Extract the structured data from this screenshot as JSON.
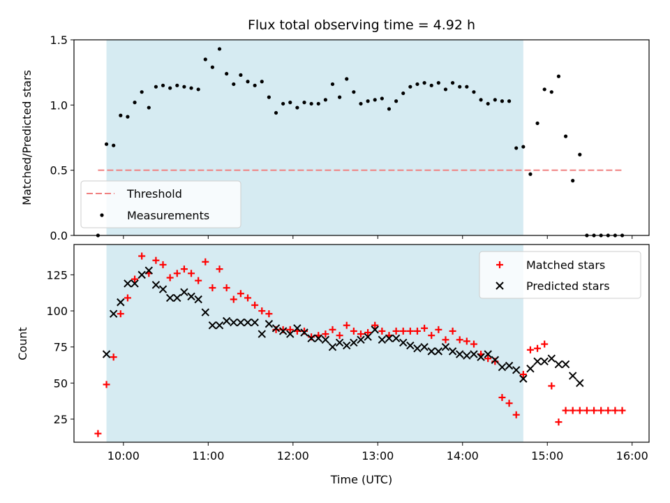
{
  "chart_data": [
    {
      "type": "scatter",
      "title": "Flux total observing time = 4.92 h",
      "xlabel": "",
      "ylabel": "Matched/Predicted stars",
      "xlim": [
        "09:25",
        "16:12"
      ],
      "ylim": [
        0,
        1.5
      ],
      "yticks": [
        0.0,
        0.5,
        1.0,
        1.5
      ],
      "ytick_labels": [
        "0.0",
        "0.5",
        "1.0",
        "1.5"
      ],
      "xticks": [
        "10:00",
        "11:00",
        "12:00",
        "13:00",
        "14:00",
        "15:00",
        "16:00"
      ],
      "observing_window": [
        "09:48",
        "14:43"
      ],
      "legend_location": "lower left",
      "threshold": {
        "name": "Threshold",
        "value": 0.5,
        "x_range": [
          "09:42",
          "15:53"
        ],
        "color": "#f08080"
      },
      "series": [
        {
          "name": "Measurements",
          "color": "#000000",
          "x": [
            "09:42",
            "09:48",
            "09:53",
            "09:58",
            "10:03",
            "10:08",
            "10:13",
            "10:18",
            "10:23",
            "10:28",
            "10:33",
            "10:38",
            "10:43",
            "10:48",
            "10:53",
            "10:58",
            "11:03",
            "11:08",
            "11:13",
            "11:18",
            "11:23",
            "11:28",
            "11:33",
            "11:38",
            "11:43",
            "11:48",
            "11:53",
            "11:58",
            "12:03",
            "12:08",
            "12:13",
            "12:18",
            "12:23",
            "12:28",
            "12:33",
            "12:38",
            "12:43",
            "12:48",
            "12:53",
            "12:58",
            "13:03",
            "13:08",
            "13:13",
            "13:18",
            "13:23",
            "13:28",
            "13:33",
            "13:38",
            "13:43",
            "13:48",
            "13:53",
            "13:58",
            "14:03",
            "14:08",
            "14:13",
            "14:18",
            "14:23",
            "14:28",
            "14:33",
            "14:38",
            "14:43",
            "14:48",
            "14:53",
            "14:58",
            "15:03",
            "15:08",
            "15:13",
            "15:18",
            "15:23",
            "15:28",
            "15:33",
            "15:38",
            "15:43",
            "15:48",
            "15:53"
          ],
          "y": [
            0.0,
            0.7,
            0.69,
            0.92,
            0.91,
            1.02,
            1.1,
            0.98,
            1.14,
            1.15,
            1.13,
            1.15,
            1.14,
            1.13,
            1.12,
            1.35,
            1.29,
            1.43,
            1.24,
            1.16,
            1.23,
            1.18,
            1.15,
            1.18,
            1.06,
            0.94,
            1.01,
            1.02,
            0.98,
            1.02,
            1.01,
            1.01,
            1.04,
            1.16,
            1.06,
            1.2,
            1.1,
            1.01,
            1.03,
            1.04,
            1.05,
            0.97,
            1.03,
            1.09,
            1.14,
            1.16,
            1.17,
            1.15,
            1.17,
            1.12,
            1.17,
            1.14,
            1.14,
            1.1,
            1.04,
            1.01,
            1.04,
            1.03,
            1.03,
            0.67,
            0.68,
            0.47,
            0.86,
            1.12,
            1.1,
            1.22,
            0.76,
            0.42,
            0.62,
            0.0,
            0.0,
            0.0,
            0.0,
            0.0,
            0.0
          ]
        }
      ]
    },
    {
      "type": "scatter",
      "title": "",
      "xlabel": "Time (UTC)",
      "ylabel": "Count",
      "xlim": [
        "09:25",
        "16:12"
      ],
      "ylim": [
        9,
        146
      ],
      "yticks": [
        25,
        50,
        75,
        100,
        125
      ],
      "xticks": [
        "10:00",
        "11:00",
        "12:00",
        "13:00",
        "14:00",
        "15:00",
        "16:00"
      ],
      "observing_window": [
        "09:48",
        "14:43"
      ],
      "legend_location": "upper right",
      "series": [
        {
          "name": "Matched stars",
          "marker": "+",
          "color": "#ff0000",
          "x": [
            "09:42",
            "09:48",
            "09:53",
            "09:58",
            "10:03",
            "10:08",
            "10:13",
            "10:18",
            "10:23",
            "10:28",
            "10:33",
            "10:38",
            "10:43",
            "10:48",
            "10:53",
            "10:58",
            "11:03",
            "11:08",
            "11:13",
            "11:18",
            "11:23",
            "11:28",
            "11:33",
            "11:38",
            "11:43",
            "11:48",
            "11:53",
            "11:58",
            "12:03",
            "12:08",
            "12:13",
            "12:18",
            "12:23",
            "12:28",
            "12:33",
            "12:38",
            "12:43",
            "12:48",
            "12:53",
            "12:58",
            "13:03",
            "13:08",
            "13:13",
            "13:18",
            "13:23",
            "13:28",
            "13:33",
            "13:38",
            "13:43",
            "13:48",
            "13:53",
            "13:58",
            "14:03",
            "14:08",
            "14:13",
            "14:18",
            "14:23",
            "14:28",
            "14:33",
            "14:38",
            "14:43",
            "14:48",
            "14:53",
            "14:58",
            "15:03",
            "15:08",
            "15:13",
            "15:18",
            "15:23",
            "15:28",
            "15:33",
            "15:38",
            "15:43",
            "15:48",
            "15:53"
          ],
          "y": [
            15,
            49,
            68,
            98,
            109,
            122,
            138,
            126,
            135,
            132,
            123,
            126,
            129,
            126,
            121,
            134,
            116,
            129,
            116,
            108,
            112,
            109,
            104,
            100,
            98,
            87,
            87,
            87,
            86,
            86,
            82,
            83,
            84,
            87,
            83,
            90,
            86,
            84,
            85,
            90,
            86,
            83,
            86,
            86,
            86,
            86,
            88,
            83,
            87,
            80,
            86,
            80,
            79,
            77,
            70,
            67,
            65,
            40,
            36,
            28,
            56,
            73,
            74,
            77,
            48,
            23,
            31,
            31,
            31,
            31,
            31,
            31,
            31,
            31,
            31
          ]
        },
        {
          "name": "Predicted stars",
          "marker": "x",
          "color": "#000000",
          "x": [
            "09:48",
            "09:53",
            "09:58",
            "10:03",
            "10:08",
            "10:13",
            "10:18",
            "10:23",
            "10:28",
            "10:33",
            "10:38",
            "10:43",
            "10:48",
            "10:53",
            "10:58",
            "11:03",
            "11:08",
            "11:13",
            "11:18",
            "11:23",
            "11:28",
            "11:33",
            "11:38",
            "11:43",
            "11:48",
            "11:53",
            "11:58",
            "12:03",
            "12:08",
            "12:13",
            "12:18",
            "12:23",
            "12:28",
            "12:33",
            "12:38",
            "12:43",
            "12:48",
            "12:53",
            "12:58",
            "13:03",
            "13:08",
            "13:13",
            "13:18",
            "13:23",
            "13:28",
            "13:33",
            "13:38",
            "13:43",
            "13:48",
            "13:53",
            "13:58",
            "14:03",
            "14:08",
            "14:13",
            "14:18",
            "14:23",
            "14:28",
            "14:33",
            "14:38",
            "14:43",
            "14:48",
            "14:53",
            "14:58",
            "15:03",
            "15:08",
            "15:13",
            "15:18",
            "15:23"
          ],
          "y": [
            70,
            98,
            106,
            119,
            119,
            125,
            128,
            118,
            115,
            109,
            109,
            113,
            110,
            108,
            99,
            90,
            90,
            93,
            92,
            92,
            92,
            92,
            84,
            91,
            88,
            86,
            84,
            88,
            85,
            81,
            81,
            80,
            75,
            78,
            76,
            78,
            80,
            82,
            87,
            80,
            81,
            81,
            78,
            76,
            74,
            75,
            72,
            72,
            75,
            72,
            70,
            69,
            70,
            68,
            70,
            66,
            61,
            62,
            59,
            53,
            60,
            65,
            65,
            67,
            63,
            63,
            55,
            50
          ]
        }
      ]
    }
  ]
}
